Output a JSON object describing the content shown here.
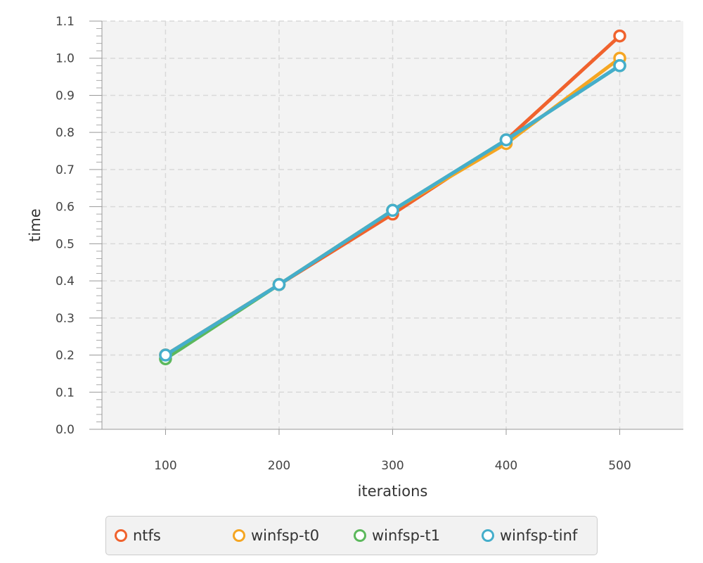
{
  "chart_data": {
    "type": "line",
    "xlabel": "iterations",
    "ylabel": "time",
    "x": [
      100,
      200,
      300,
      400,
      500
    ],
    "xlim": [
      44,
      556
    ],
    "ylim": [
      0.0,
      1.1
    ],
    "xticks": [
      "100",
      "200",
      "300",
      "400",
      "500"
    ],
    "yticks": [
      "0.0",
      "0.1",
      "0.2",
      "0.3",
      "0.4",
      "0.5",
      "0.6",
      "0.7",
      "0.8",
      "0.9",
      "1.0",
      "1.1"
    ],
    "grid": true,
    "legend_position": "bottom",
    "series": [
      {
        "name": "ntfs",
        "color": "#f0622d",
        "values": [
          0.2,
          0.39,
          0.58,
          0.78,
          1.06
        ]
      },
      {
        "name": "winfsp-t0",
        "color": "#f5a623",
        "values": [
          0.2,
          0.39,
          0.59,
          0.77,
          1.0
        ]
      },
      {
        "name": "winfsp-t1",
        "color": "#5cb85c",
        "values": [
          0.19,
          0.39,
          0.59,
          0.78,
          0.98
        ]
      },
      {
        "name": "winfsp-tinf",
        "color": "#45aecb",
        "values": [
          0.2,
          0.39,
          0.59,
          0.78,
          0.98
        ]
      }
    ]
  }
}
